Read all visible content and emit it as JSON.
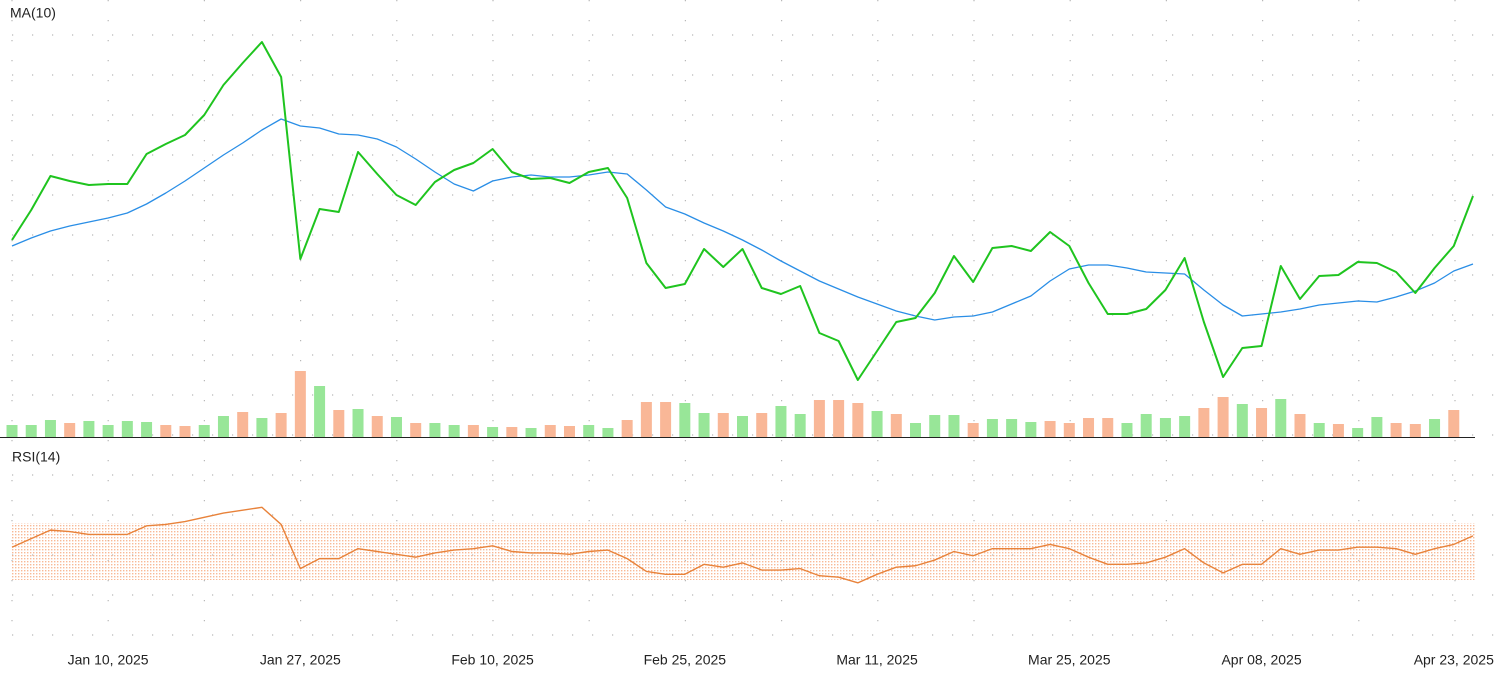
{
  "chart_data": [
    {
      "type": "line",
      "title": "MA(10)",
      "categories": [
        null,
        null,
        null,
        null,
        null,
        "Jan 10, 2025",
        null,
        null,
        null,
        null,
        null,
        null,
        null,
        null,
        null,
        "Jan 27, 2025",
        null,
        null,
        null,
        null,
        null,
        null,
        null,
        null,
        null,
        "Feb 10, 2025",
        null,
        null,
        null,
        null,
        null,
        null,
        null,
        null,
        null,
        "Feb 25, 2025",
        null,
        null,
        null,
        null,
        null,
        null,
        null,
        null,
        null,
        "Mar 11, 2025",
        null,
        null,
        null,
        null,
        null,
        null,
        null,
        null,
        null,
        "Mar 25, 2025",
        null,
        null,
        null,
        null,
        null,
        null,
        null,
        null,
        null,
        "Apr 08, 2025",
        null,
        null,
        null,
        null,
        null,
        null,
        null,
        null,
        null,
        "Apr 23, 2025",
        null
      ],
      "ylim": [
        0,
        430
      ],
      "grid": true,
      "series": [
        {
          "color": "#1fc41f",
          "values": [
            200,
            230,
            264,
            259,
            255,
            256,
            256,
            286,
            296,
            305,
            325,
            355,
            377,
            398,
            363,
            181,
            231,
            228,
            288,
            266,
            245,
            235,
            258,
            270,
            277,
            291,
            268,
            261,
            262,
            257,
            268,
            272,
            242,
            177,
            152,
            156,
            191,
            173,
            191,
            152,
            146,
            154,
            107,
            99,
            60,
            89,
            118,
            122,
            147,
            184,
            158,
            192,
            194,
            189,
            208,
            194,
            157,
            126,
            126,
            131,
            150,
            182,
            118,
            63,
            92,
            94,
            174,
            141,
            164,
            165,
            178,
            177,
            168,
            147,
            172,
            194,
            244
          ]
        },
        {
          "color": "#2a8ee6",
          "values": [
            194,
            202,
            209,
            214,
            218,
            222,
            227,
            236,
            247,
            259,
            272,
            285,
            297,
            310,
            321,
            314,
            312,
            306,
            305,
            301,
            293,
            281,
            268,
            256,
            249,
            259,
            263,
            265,
            263,
            263,
            265,
            268,
            266,
            250,
            233,
            226,
            217,
            209,
            200,
            190,
            179,
            169,
            159,
            151,
            143,
            136,
            129,
            124,
            120,
            123,
            124,
            128,
            136,
            144,
            159,
            171,
            175,
            175,
            172,
            168,
            167,
            166,
            150,
            135,
            124,
            126,
            128,
            131,
            135,
            137,
            139,
            138,
            143,
            149,
            157,
            169,
            176
          ]
        }
      ],
      "volume": {
        "ylim": [
          0,
          80
        ],
        "up_color": "#98e698",
        "down_color": "#f9b797",
        "values": [
          12,
          12,
          17,
          14,
          16,
          12,
          16,
          15,
          12,
          11,
          12,
          21,
          25,
          19,
          24,
          66,
          51,
          27,
          28,
          21,
          20,
          14,
          14,
          12,
          12,
          10,
          10,
          9,
          12,
          11,
          12,
          9,
          17,
          35,
          35,
          34,
          24,
          24,
          21,
          24,
          31,
          23,
          37,
          37,
          34,
          26,
          23,
          14,
          22,
          22,
          14,
          18,
          18,
          15,
          16,
          14,
          19,
          19,
          14,
          23,
          19,
          21,
          29,
          40,
          33,
          29,
          38,
          23,
          14,
          13,
          9,
          20,
          14,
          13,
          18,
          27,
          null
        ],
        "direction": [
          "up",
          "up",
          "up",
          "down",
          "up",
          "up",
          "up",
          "up",
          "down",
          "down",
          "up",
          "up",
          "down",
          "up",
          "down",
          "down",
          "up",
          "down",
          "up",
          "down",
          "up",
          "down",
          "up",
          "up",
          "down",
          "up",
          "down",
          "up",
          "down",
          "down",
          "up",
          "up",
          "down",
          "down",
          "down",
          "up",
          "up",
          "down",
          "up",
          "down",
          "up",
          "up",
          "down",
          "down",
          "down",
          "up",
          "down",
          "up",
          "up",
          "up",
          "down",
          "up",
          "up",
          "up",
          "down",
          "down",
          "down",
          "down",
          "up",
          "up",
          "up",
          "up",
          "down",
          "down",
          "up",
          "down",
          "up",
          "down",
          "up",
          "down",
          "up",
          "up",
          "down",
          "down",
          "up",
          "down",
          null
        ]
      }
    },
    {
      "type": "line",
      "title": "RSI(14)",
      "ylim": [
        0,
        100
      ],
      "band": [
        30,
        70
      ],
      "band_color": "#f5a273",
      "series": [
        {
          "color": "#e8823a",
          "values": [
            53,
            59,
            65,
            64,
            62,
            62,
            62,
            68,
            69,
            71,
            74,
            77,
            79,
            81,
            69,
            38,
            45,
            45,
            52,
            50,
            48,
            46,
            49,
            51,
            52,
            54,
            50,
            49,
            49,
            48,
            50,
            51,
            45,
            36,
            34,
            34,
            41,
            39,
            42,
            37,
            37,
            38,
            33,
            32,
            28,
            34,
            39,
            40,
            44,
            50,
            47,
            52,
            52,
            52,
            55,
            52,
            46,
            41,
            41,
            42,
            46,
            52,
            42,
            35,
            41,
            41,
            52,
            48,
            51,
            51,
            53,
            53,
            52,
            48,
            52,
            55,
            61
          ]
        }
      ]
    }
  ]
}
